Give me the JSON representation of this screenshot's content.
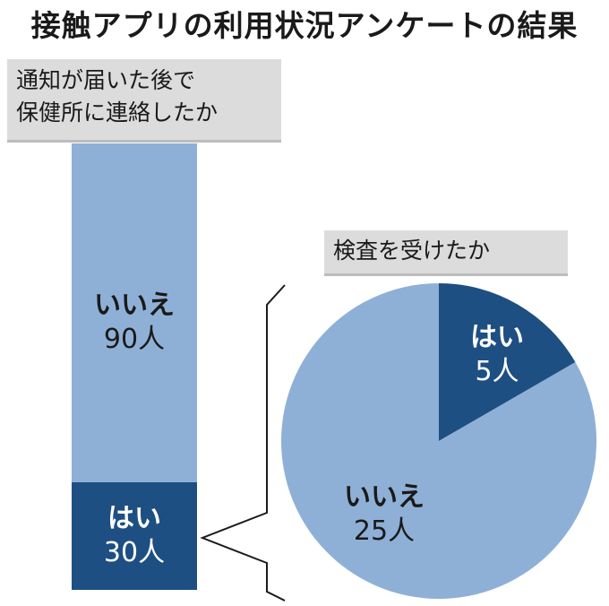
{
  "title": "接触アプリの利用状況アンケートの結果",
  "chart_data": [
    {
      "type": "bar",
      "question_lines": [
        "通知が届いた後で",
        "保健所に連絡したか"
      ],
      "categories": [
        "いいえ",
        "はい"
      ],
      "values": [
        90,
        30
      ],
      "value_labels": [
        "90人",
        "30人"
      ],
      "colors": [
        "#8fb0d6",
        "#1e4f82"
      ]
    },
    {
      "type": "pie",
      "question": "検査を受けたか",
      "categories": [
        "はい",
        "いいえ"
      ],
      "values": [
        5,
        25
      ],
      "value_labels": [
        "5人",
        "25人"
      ],
      "colors": [
        "#1e4f82",
        "#8fb0d6"
      ]
    }
  ]
}
